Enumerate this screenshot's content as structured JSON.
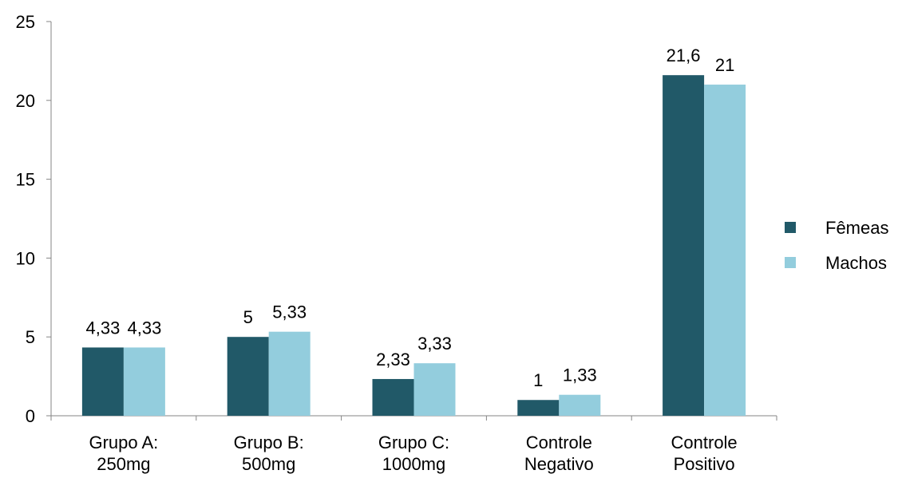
{
  "chart_data": {
    "type": "bar",
    "categories": [
      [
        "Grupo A:",
        "250mg"
      ],
      [
        "Grupo B:",
        "500mg"
      ],
      [
        "Grupo C:",
        "1000mg"
      ],
      [
        "Controle",
        "Negativo"
      ],
      [
        "Controle",
        "Positivo"
      ]
    ],
    "series": [
      {
        "name": "Fêmeas",
        "color": "#215968",
        "values": [
          4.33,
          5,
          2.33,
          1,
          21.6
        ],
        "labels": [
          "4,33",
          "5",
          "2,33",
          "1",
          "21,6"
        ]
      },
      {
        "name": "Machos",
        "color": "#93CDDD",
        "values": [
          4.33,
          5.33,
          3.33,
          1.33,
          21
        ],
        "labels": [
          "4,33",
          "5,33",
          "3,33",
          "1,33",
          "21"
        ]
      }
    ],
    "ylim": [
      0,
      25
    ],
    "yticks": [
      "0",
      "5",
      "10",
      "15",
      "20",
      "25"
    ],
    "title": "",
    "xlabel": "",
    "ylabel": "",
    "grid": false,
    "legend": "right"
  }
}
